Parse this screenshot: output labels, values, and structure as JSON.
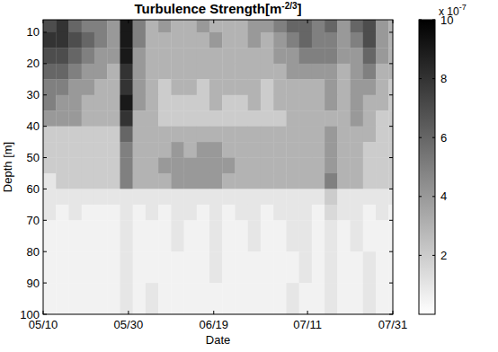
{
  "chart_data": {
    "type": "heatmap",
    "title": "Turbulence Strength",
    "title_unit": {
      "before": "[m",
      "exponent": "-2/3",
      "after": "]"
    },
    "x_label": "Date",
    "y_label": "Depth [m]",
    "xlim": [
      0,
      82
    ],
    "xticks": [
      {
        "value": 0,
        "label": "05/10"
      },
      {
        "value": 20,
        "label": "05/30"
      },
      {
        "value": 40,
        "label": "06/19"
      },
      {
        "value": 62,
        "label": "07/11"
      },
      {
        "value": 82,
        "label": "07/31"
      }
    ],
    "ylim": [
      6,
      100
    ],
    "yticks": [
      10,
      20,
      30,
      40,
      50,
      60,
      70,
      80,
      90,
      100
    ],
    "x_edges": [
      0,
      3,
      6,
      9,
      12,
      15,
      18,
      21,
      24,
      27,
      30,
      33,
      36,
      39,
      42,
      45,
      48,
      51,
      54,
      57,
      60,
      63,
      66,
      69,
      72,
      75,
      78,
      81,
      82
    ],
    "y_edges": [
      6,
      10,
      15,
      20,
      25,
      30,
      35,
      40,
      45,
      50,
      55,
      60,
      65,
      70,
      80,
      90,
      100
    ],
    "cells": [
      [
        7,
        8,
        6,
        5,
        5,
        4,
        9,
        5,
        3,
        4,
        3,
        3,
        4,
        3,
        3,
        3,
        4,
        4,
        5,
        6,
        6,
        5,
        6,
        4,
        6,
        7,
        4,
        3
      ],
      [
        8,
        8,
        7,
        6,
        5,
        4,
        9,
        5,
        3,
        3,
        3,
        3,
        3,
        4,
        3,
        3,
        4,
        3,
        4,
        5,
        6,
        5,
        5,
        4,
        5,
        7,
        4,
        3
      ],
      [
        7,
        7,
        6,
        5,
        4,
        4,
        9,
        4,
        3,
        3,
        3,
        3,
        3,
        3,
        3,
        3,
        3,
        3,
        4,
        4,
        5,
        5,
        5,
        4,
        4,
        6,
        4,
        3
      ],
      [
        6,
        6,
        5,
        4,
        4,
        3,
        8,
        4,
        3,
        3,
        3,
        3,
        3,
        3,
        3,
        3,
        3,
        3,
        3,
        4,
        4,
        4,
        4,
        3,
        4,
        5,
        3,
        3
      ],
      [
        5,
        5,
        4,
        4,
        3,
        3,
        8,
        4,
        3,
        2,
        3,
        3,
        2,
        3,
        3,
        3,
        3,
        2,
        3,
        3,
        3,
        3,
        4,
        3,
        4,
        4,
        3,
        2
      ],
      [
        5,
        4,
        4,
        3,
        3,
        3,
        9,
        4,
        3,
        2,
        2,
        2,
        2,
        3,
        2,
        2,
        3,
        2,
        3,
        3,
        3,
        3,
        4,
        3,
        4,
        3,
        3,
        2
      ],
      [
        4,
        4,
        4,
        3,
        3,
        3,
        8,
        3,
        3,
        2,
        2,
        2,
        2,
        2,
        2,
        2,
        2,
        2,
        2,
        3,
        3,
        3,
        3,
        3,
        4,
        3,
        2,
        2
      ],
      [
        2,
        2,
        2,
        2,
        2,
        2,
        6,
        3,
        3,
        3,
        3,
        3,
        3,
        3,
        3,
        3,
        3,
        3,
        3,
        3,
        3,
        3,
        4,
        3,
        3,
        3,
        2,
        2
      ],
      [
        2,
        2,
        2,
        2,
        2,
        2,
        5,
        3,
        3,
        3,
        4,
        3,
        4,
        4,
        3,
        3,
        3,
        3,
        3,
        3,
        3,
        3,
        4,
        3,
        3,
        2,
        2,
        2
      ],
      [
        2,
        2,
        2,
        2,
        2,
        2,
        5,
        3,
        3,
        4,
        4,
        4,
        4,
        4,
        4,
        3,
        3,
        3,
        3,
        3,
        3,
        3,
        4,
        3,
        3,
        2,
        2,
        2
      ],
      [
        1,
        2,
        2,
        2,
        2,
        2,
        5,
        3,
        3,
        3,
        4,
        4,
        4,
        4,
        3,
        3,
        3,
        3,
        3,
        3,
        3,
        3,
        5,
        3,
        3,
        2,
        2,
        2
      ],
      [
        1,
        1,
        1,
        1,
        1,
        1,
        1,
        1,
        1,
        1,
        1,
        1,
        1,
        1,
        1,
        1,
        1,
        1,
        1,
        1,
        1,
        1,
        2,
        1,
        1,
        1,
        1,
        1
      ],
      [
        1,
        0.5,
        1,
        0.5,
        0.5,
        0.5,
        1,
        0.5,
        1,
        0.5,
        1,
        1,
        0.5,
        1,
        0.5,
        1,
        1,
        0.5,
        1,
        1,
        1,
        0.5,
        1.5,
        1,
        1,
        0.5,
        1,
        0.5
      ],
      [
        0.5,
        0.5,
        0.5,
        0.5,
        0.5,
        0.5,
        1,
        0.5,
        0.5,
        0.5,
        1,
        0.5,
        0.5,
        1,
        0.5,
        0.5,
        1,
        0.5,
        0.5,
        1,
        1,
        0.5,
        1,
        0.5,
        1,
        0.5,
        0.5,
        0.5
      ],
      [
        0.5,
        0.5,
        0.5,
        0.5,
        0.5,
        0.5,
        1,
        0.5,
        0.5,
        0.5,
        0.5,
        0.5,
        0.5,
        1,
        0.5,
        0.5,
        0.5,
        0.5,
        0.5,
        0.5,
        1,
        0.5,
        1,
        0.5,
        0.5,
        1,
        0.5,
        0.5
      ],
      [
        0.5,
        0.5,
        0.5,
        0.5,
        0.5,
        0.5,
        1,
        0.5,
        1,
        0.5,
        0.5,
        0.5,
        0.5,
        0.5,
        0.5,
        0.5,
        0.5,
        0.5,
        0.5,
        1,
        0.5,
        0.5,
        1,
        0.5,
        0.5,
        1,
        0.5,
        0.5
      ]
    ],
    "colorbar": {
      "range": [
        0,
        10
      ],
      "ticks": [
        2,
        4,
        6,
        8,
        10
      ],
      "multiplier": "x 10",
      "exponent": "-7"
    }
  }
}
